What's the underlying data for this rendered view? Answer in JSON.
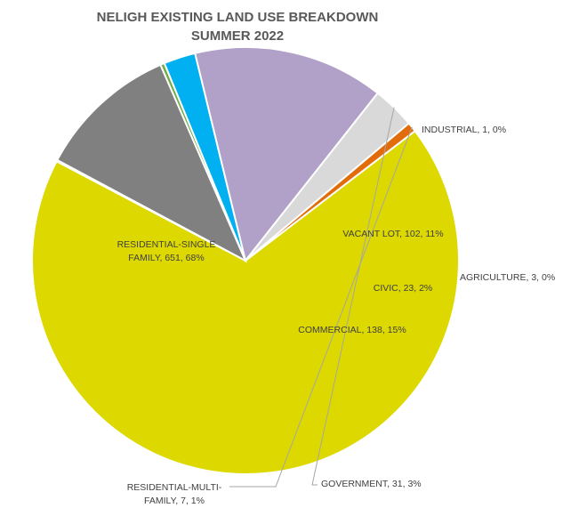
{
  "chart_data": {
    "type": "pie",
    "title_lines": [
      "NELIGH EXISTING LAND USE BREAKDOWN",
      "SUMMER 2022"
    ],
    "slices": [
      {
        "name": "RESIDENTIAL-SINGLE FAMILY",
        "value": 651,
        "percent": "68%",
        "color": "#dcd800",
        "label_lines": [
          "RESIDENTIAL-SINGLE",
          "FAMILY, 651, 68%"
        ]
      },
      {
        "name": "INDUSTRIAL",
        "value": 1,
        "percent": "0%",
        "color": "#4472c4",
        "label_lines": [
          "INDUSTRIAL, 1, 0%"
        ]
      },
      {
        "name": "VACANT LOT",
        "value": 102,
        "percent": "11%",
        "color": "#808080",
        "label_lines": [
          "VACANT LOT, 102, 11%"
        ]
      },
      {
        "name": "AGRICULTURE",
        "value": 3,
        "percent": "0%",
        "color": "#70ad47",
        "label_lines": [
          "AGRICULTURE, 3, 0%"
        ]
      },
      {
        "name": "CIVIC",
        "value": 23,
        "percent": "2%",
        "color": "#00b0f0",
        "label_lines": [
          "CIVIC, 23, 2%"
        ]
      },
      {
        "name": "COMMERCIAL",
        "value": 138,
        "percent": "15%",
        "color": "#b1a0c7",
        "label_lines": [
          "COMMERCIAL, 138, 15%"
        ]
      },
      {
        "name": "GOVERNMENT",
        "value": 31,
        "percent": "3%",
        "color": "#d9d9d9",
        "label_lines": [
          "GOVERNMENT, 31, 3%"
        ]
      },
      {
        "name": "RESIDENTIAL-MULTI-FAMILY",
        "value": 7,
        "percent": "1%",
        "color": "#e36c0a",
        "label_lines": [
          "RESIDENTIAL-MULTI-",
          "FAMILY, 7, 1%"
        ]
      }
    ]
  }
}
